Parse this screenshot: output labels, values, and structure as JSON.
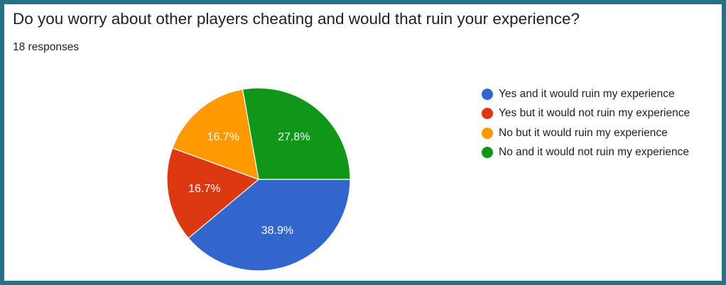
{
  "header": {
    "question": "Do you worry about other players cheating and would that ruin your experience?",
    "responses": "18 responses"
  },
  "chart_data": {
    "type": "pie",
    "total": 18,
    "categories": [
      "Yes and it would ruin my experience",
      "Yes but it would not ruin my experience",
      "No but it would ruin my experience",
      "No and it would not ruin my experience"
    ],
    "values": [
      7,
      3,
      3,
      5
    ],
    "percent_labels": [
      "38.9%",
      "16.7%",
      "16.7%",
      "27.8%"
    ],
    "colors": [
      "#3366cc",
      "#dc3912",
      "#ff9900",
      "#109618"
    ],
    "legend_position": "right"
  }
}
